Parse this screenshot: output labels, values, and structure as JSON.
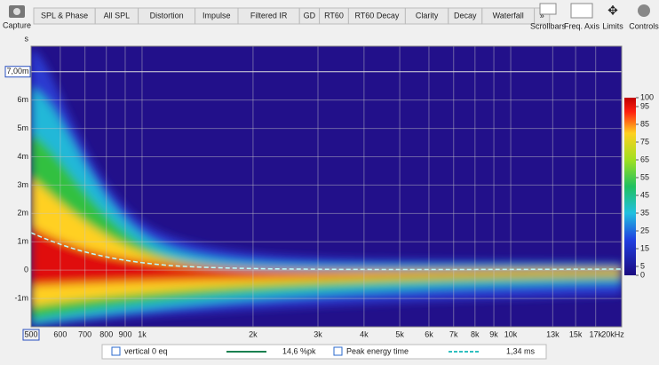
{
  "toolbar": {
    "capture": "Capture",
    "tabs": [
      "SPL & Phase",
      "All SPL",
      "Distortion",
      "Impulse",
      "Filtered IR",
      "GD",
      "RT60",
      "RT60 Decay",
      "Clarity",
      "Decay",
      "Waterfall",
      "»"
    ],
    "right": [
      "Scrollbars",
      "Freq. Axis",
      "Limits",
      "Controls"
    ]
  },
  "plot": {
    "y_unit": "s",
    "xlim": [
      500,
      20000
    ],
    "ylim": [
      -2,
      7.9
    ],
    "log_x": true,
    "xticks": [
      500,
      {
        "value": 600,
        "label": "600"
      },
      {
        "value": 700,
        "label": "700"
      },
      {
        "value": 800,
        "label": "800"
      },
      {
        "value": 900,
        "label": "900"
      },
      {
        "value": 1000,
        "label": "1k"
      },
      {
        "value": 2000,
        "label": "2k"
      },
      {
        "value": 3000,
        "label": "3k"
      },
      {
        "value": 4000,
        "label": "4k"
      },
      {
        "value": 5000,
        "label": "5k"
      },
      {
        "value": 6000,
        "label": "6k"
      },
      {
        "value": 7000,
        "label": "7k"
      },
      {
        "value": 8000,
        "label": "8k"
      },
      {
        "value": 9000,
        "label": "9k"
      },
      {
        "value": 10000,
        "label": "10k"
      },
      {
        "value": 13000,
        "label": "13k"
      },
      {
        "value": 15000,
        "label": "15k"
      },
      {
        "value": 17000,
        "label": "17k"
      },
      {
        "value": 20000,
        "label": "20kHz"
      }
    ],
    "yticks": [
      {
        "value": -1,
        "label": "-1m"
      },
      0,
      {
        "value": 1,
        "label": "1m"
      },
      {
        "value": 2,
        "label": "2m"
      },
      {
        "value": 3,
        "label": "3m"
      },
      {
        "value": 4,
        "label": "4m"
      },
      {
        "value": 5,
        "label": "5m"
      },
      {
        "value": 6,
        "label": "6m"
      }
    ],
    "cursor": {
      "value": 7,
      "label": "7,00m"
    },
    "colorbar": {
      "lim": [
        0,
        100
      ],
      "ticks": [
        0,
        5,
        15,
        25,
        35,
        45,
        55,
        65,
        75,
        85,
        95,
        100
      ]
    }
  },
  "legend": {
    "name": "vertical 0 eq",
    "value": "14,6 %pk",
    "peak": "Peak energy time",
    "peak_value": "1,34 ms"
  }
}
